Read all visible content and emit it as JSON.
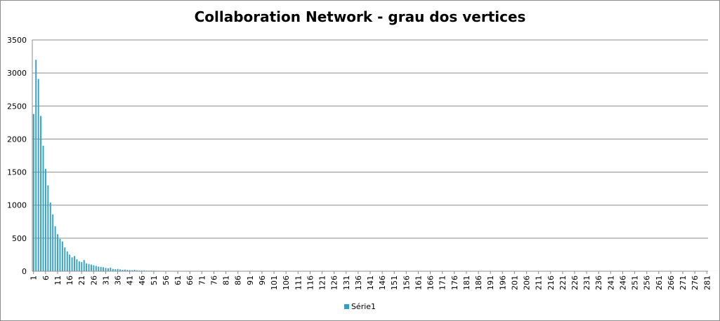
{
  "chart_data": {
    "type": "bar",
    "title": "Collaboration Network - grau dos vertices",
    "xlabel": "",
    "ylabel": "",
    "ylim": [
      0,
      3500
    ],
    "yticks": [
      0,
      500,
      1000,
      1500,
      2000,
      2500,
      3000,
      3500
    ],
    "grid": true,
    "legend_position": "bottom",
    "x_start": 1,
    "x_end": 281,
    "xtick_step": 5,
    "series": [
      {
        "name": "Série1",
        "color": "#31a0c0",
        "values": [
          2380,
          3200,
          2910,
          2350,
          1900,
          1550,
          1300,
          1040,
          860,
          680,
          560,
          490,
          450,
          360,
          300,
          250,
          210,
          230,
          180,
          150,
          140,
          170,
          120,
          110,
          100,
          90,
          80,
          70,
          65,
          60,
          50,
          45,
          55,
          35,
          30,
          35,
          28,
          22,
          25,
          20,
          18,
          15,
          22,
          14,
          12,
          10,
          12,
          9,
          8,
          9,
          8,
          7,
          7,
          6,
          6,
          5,
          6,
          5,
          5,
          4,
          5,
          4,
          4,
          4,
          4,
          3,
          3,
          3,
          3,
          3,
          3,
          3,
          3,
          2,
          2,
          2,
          2,
          2,
          2,
          2,
          2,
          2,
          2,
          2,
          2,
          2,
          2,
          2,
          2,
          2,
          2,
          2,
          2,
          2,
          2,
          2,
          2,
          2,
          1,
          2,
          2,
          1,
          1,
          1,
          1,
          1,
          1,
          1,
          1,
          1,
          1,
          1,
          1,
          1,
          1,
          1,
          1,
          1,
          1,
          1,
          1,
          1,
          1,
          1,
          1,
          1,
          1,
          1,
          1,
          1,
          1,
          1,
          1,
          1,
          1,
          1,
          1,
          1,
          1,
          1,
          1,
          1,
          1,
          1,
          1,
          1,
          1,
          1,
          1,
          1,
          1,
          1,
          1,
          1,
          1,
          1,
          1,
          1,
          1,
          1,
          1,
          1,
          1,
          1,
          1,
          1,
          1,
          1,
          1,
          1,
          1,
          1,
          1,
          1,
          1,
          1,
          1,
          1,
          1,
          1,
          1,
          1,
          1,
          1,
          1,
          1,
          1,
          1,
          1,
          1,
          1,
          1,
          1,
          1,
          1,
          1,
          1,
          1,
          1,
          1,
          1,
          1,
          1,
          1,
          1,
          1,
          1,
          1,
          1,
          1,
          1,
          1,
          1,
          1,
          1,
          1,
          1,
          1,
          1,
          1,
          1,
          1,
          1,
          1,
          1,
          1,
          1,
          1,
          1,
          1,
          1,
          1,
          1,
          1,
          1,
          1,
          1,
          1,
          1,
          1,
          1,
          1,
          1,
          1,
          1,
          1,
          1,
          1,
          1,
          1,
          1,
          1,
          1,
          1,
          1,
          1,
          1,
          1,
          1,
          1,
          1,
          1,
          1,
          1,
          1,
          1,
          1,
          1,
          1,
          1,
          1,
          1,
          1,
          1,
          1,
          1,
          1,
          1,
          1,
          1,
          1,
          1,
          1,
          1,
          1,
          1,
          1,
          1,
          1,
          1,
          1,
          1,
          1,
          1,
          1,
          1,
          1,
          1,
          1,
          1,
          1,
          1,
          1,
          1,
          1,
          1,
          1
        ]
      }
    ]
  }
}
